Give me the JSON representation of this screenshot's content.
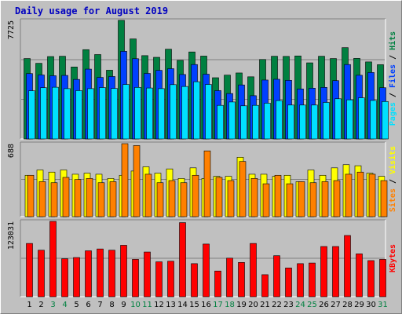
{
  "chart_data": {
    "type": "bar",
    "title": "Daily usage for August 2019",
    "background": "#c0c0c0",
    "categories": [
      "1",
      "2",
      "3",
      "4",
      "5",
      "6",
      "7",
      "8",
      "9",
      "10",
      "11",
      "12",
      "13",
      "14",
      "15",
      "16",
      "17",
      "18",
      "19",
      "20",
      "21",
      "22",
      "23",
      "24",
      "25",
      "26",
      "27",
      "28",
      "29",
      "30",
      "31"
    ],
    "weekend_days": [
      "3",
      "4",
      "10",
      "11",
      "17",
      "18",
      "24",
      "25",
      "31"
    ],
    "panels": [
      {
        "name": "hits-files-pages",
        "ymax": 7725,
        "ymax_label": "7725",
        "series": [
          {
            "name": "Hits",
            "color": "#008040",
            "values": [
              5240,
              4930,
              5370,
              5390,
              4690,
              5820,
              5500,
              4480,
              7730,
              6520,
              5430,
              5320,
              5850,
              5120,
              5670,
              5400,
              3990,
              4160,
              4300,
              4050,
              5180,
              5390,
              5380,
              5410,
              4960,
              5390,
              5240,
              5950,
              5250,
              5020,
              4840
            ]
          },
          {
            "name": "Files",
            "color": "#0040ff",
            "values": [
              4260,
              4170,
              4120,
              4140,
              3880,
              4550,
              4010,
              4070,
              5710,
              5230,
              4270,
              4470,
              4580,
              4200,
              4850,
              4220,
              3150,
              2960,
              3520,
              2820,
              3840,
              3890,
              3820,
              3260,
              3310,
              3360,
              3800,
              4850,
              4150,
              4330,
              3340
            ]
          },
          {
            "name": "Pages",
            "color": "#00e0ff",
            "values": [
              3140,
              3340,
              3370,
              3280,
              3150,
              3280,
              3350,
              3290,
              3550,
              3360,
              3320,
              3280,
              3540,
              3420,
              3730,
              3550,
              2190,
              2410,
              2160,
              2190,
              2330,
              2500,
              2210,
              2210,
              2210,
              2380,
              2620,
              2550,
              2680,
              2510,
              2440
            ]
          }
        ],
        "label_text": [
          "Pages",
          " / ",
          "Files",
          " / ",
          "Hits"
        ],
        "label_colors": [
          "#00e0ff",
          "#000000",
          "#0040ff",
          "#000000",
          "#008040"
        ]
      },
      {
        "name": "visits-sites",
        "ymax": 688,
        "ymax_label": "688",
        "series": [
          {
            "name": "Visits",
            "color": "#ffff00",
            "values": [
              390,
              440,
              420,
              440,
              400,
              410,
              400,
              360,
              390,
              430,
              470,
              410,
              450,
              360,
              460,
              360,
              380,
              380,
              560,
              400,
              400,
              380,
              390,
              330,
              440,
              390,
              460,
              490,
              480,
              410,
              380
            ]
          },
          {
            "name": "Sites",
            "color": "#ff8000",
            "values": [
              390,
              330,
              320,
              370,
              350,
              360,
              320,
              330,
              688,
              670,
              400,
              320,
              340,
              320,
              390,
              620,
              370,
              340,
              520,
              360,
              310,
              390,
              310,
              330,
              320,
              330,
              340,
              400,
              420,
              400,
              340
            ]
          }
        ],
        "label_text": [
          "Sites",
          " / ",
          "Visits"
        ],
        "label_colors": [
          "#ff8000",
          "#000000",
          "#ffff00"
        ]
      },
      {
        "name": "kbytes",
        "ymax": 123031,
        "ymax_label": "123031",
        "series": [
          {
            "name": "KBytes",
            "color": "#ff0000",
            "values": [
              87000,
              76000,
              123031,
              62000,
              64000,
              75000,
              78000,
              76000,
              84000,
              61000,
              73000,
              57000,
              58000,
              121000,
              54000,
              86000,
              42000,
              63000,
              56000,
              87000,
              36000,
              67000,
              47000,
              54000,
              55000,
              82000,
              82000,
              100000,
              70000,
              59000,
              61000
            ]
          }
        ],
        "label_text": [
          "KBytes"
        ],
        "label_colors": [
          "#ff0000"
        ]
      }
    ],
    "xlabel": "",
    "ylabel": ""
  }
}
